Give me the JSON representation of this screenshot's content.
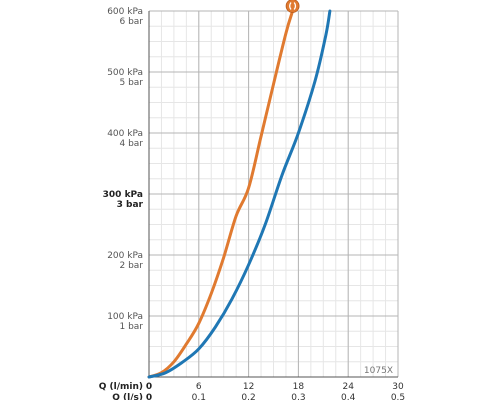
{
  "chart_data": {
    "type": "line",
    "model_code": "1075X",
    "x_axes": [
      {
        "name": "Q (l/min)",
        "ticks": [
          "0",
          "6",
          "12",
          "18",
          "24",
          "30"
        ]
      },
      {
        "name": "Q (l/s)",
        "ticks": [
          "0",
          "0.1",
          "0.2",
          "0.3",
          "0.4",
          "0.5"
        ]
      }
    ],
    "y_ticks": [
      {
        "value": 600,
        "kpa": "600 kPa",
        "bar": "6 bar",
        "bold": false
      },
      {
        "value": 500,
        "kpa": "500 kPa",
        "bar": "5 bar",
        "bold": false
      },
      {
        "value": 400,
        "kpa": "400 kPa",
        "bar": "4 bar",
        "bold": false
      },
      {
        "value": 300,
        "kpa": "300 kPa",
        "bar": "3 bar",
        "bold": true
      },
      {
        "value": 200,
        "kpa": "200 kPa",
        "bar": "2 bar",
        "bold": false
      },
      {
        "value": 100,
        "kpa": "100 kPa",
        "bar": "1 bar",
        "bold": false
      }
    ],
    "xlim": [
      0,
      30
    ],
    "ylim": [
      0,
      600
    ],
    "grid": true,
    "series": [
      {
        "color": "#e07a30",
        "x": [
          0,
          1.5,
          3,
          4.5,
          6,
          7.5,
          9,
          10.5,
          12,
          13.5,
          15,
          16.5,
          17.3
        ],
        "y": [
          0,
          7,
          25,
          54,
          88,
          137,
          196,
          264,
          310,
          395,
          480,
          564,
          600
        ]
      },
      {
        "color": "#1f77b4",
        "x": [
          0,
          2,
          4,
          6,
          8,
          10,
          12,
          14,
          16,
          18,
          20,
          21.3,
          21.8
        ],
        "y": [
          0,
          7,
          24,
          46,
          82,
          128,
          184,
          250,
          330,
          400,
          485,
          560,
          600
        ]
      }
    ],
    "marker_icon": "handle-symbol-icon"
  }
}
